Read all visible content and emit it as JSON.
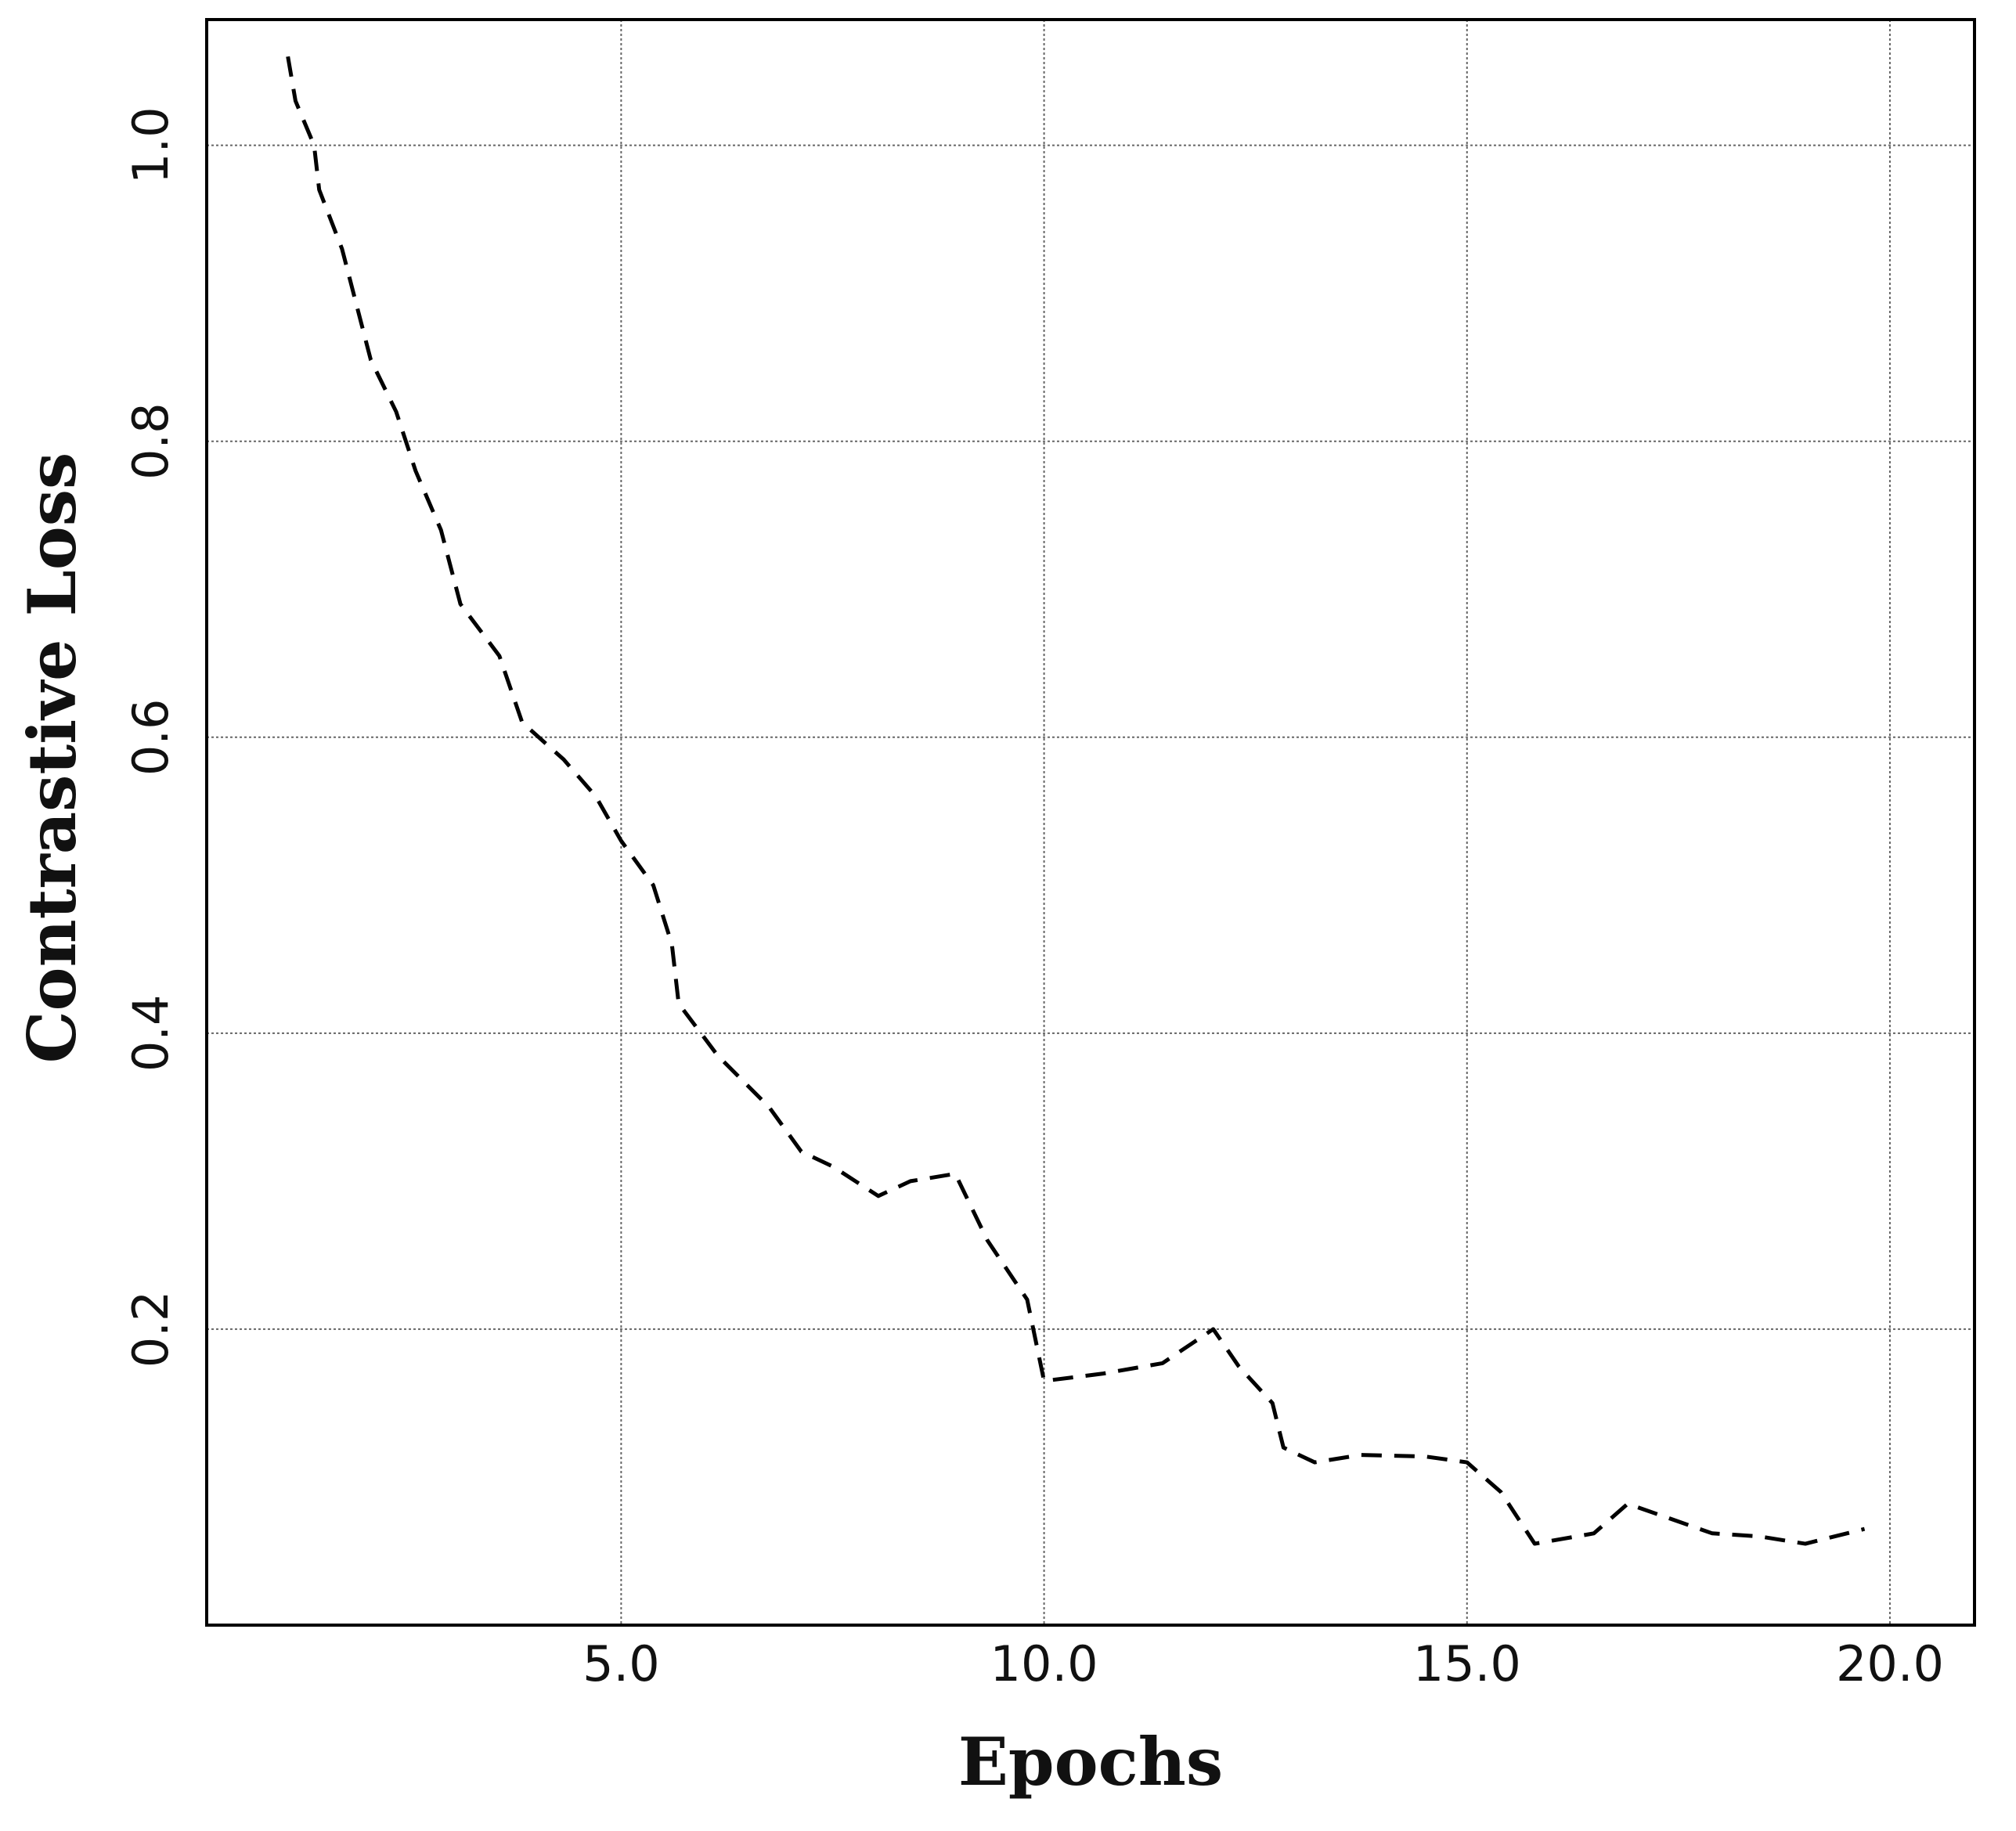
{
  "chart_data": {
    "type": "line",
    "xlabel": "Epochs",
    "ylabel": "Contrastive Loss",
    "xlim": [
      0.1,
      21
    ],
    "ylim": [
      0,
      1.085
    ],
    "xticks": [
      {
        "value": 5,
        "label": "5.0"
      },
      {
        "value": 10,
        "label": "10.0"
      },
      {
        "value": 15,
        "label": "15.0"
      },
      {
        "value": 20,
        "label": "20.0"
      }
    ],
    "yticks": [
      0.2,
      0.4,
      0.6,
      0.8,
      {
        "value": 1,
        "label": "1.0"
      }
    ],
    "grid": true,
    "series": [
      {
        "color": "#000000",
        "dash": true,
        "x": [
          1.06,
          1.15,
          1.37,
          1.43,
          1.7,
          2.04,
          2.34,
          2.57,
          2.87,
          3.1,
          3.56,
          3.83,
          4.32,
          4.7,
          5.0,
          5.38,
          5.6,
          5.68,
          6.14,
          6.75,
          7.13,
          7.5,
          8.04,
          8.42,
          8.95,
          9.33,
          9.8,
          10.0,
          10.7,
          11.4,
          12.0,
          12.3,
          12.7,
          12.83,
          13.2,
          13.74,
          14.5,
          15.0,
          15.4,
          15.8,
          16.5,
          16.9,
          17.4,
          17.9,
          18.45,
          19.0,
          19.7
        ],
        "values": [
          1.06,
          1.03,
          1.0,
          0.97,
          0.93,
          0.855,
          0.82,
          0.78,
          0.74,
          0.69,
          0.655,
          0.61,
          0.585,
          0.56,
          0.53,
          0.5,
          0.46,
          0.42,
          0.385,
          0.35,
          0.32,
          0.31,
          0.29,
          0.3,
          0.305,
          0.26,
          0.22,
          0.165,
          0.17,
          0.177,
          0.2,
          0.175,
          0.15,
          0.12,
          0.11,
          0.115,
          0.114,
          0.11,
          0.09,
          0.055,
          0.062,
          0.082,
          0.072,
          0.062,
          0.06,
          0.055,
          0.065
        ]
      }
    ]
  }
}
